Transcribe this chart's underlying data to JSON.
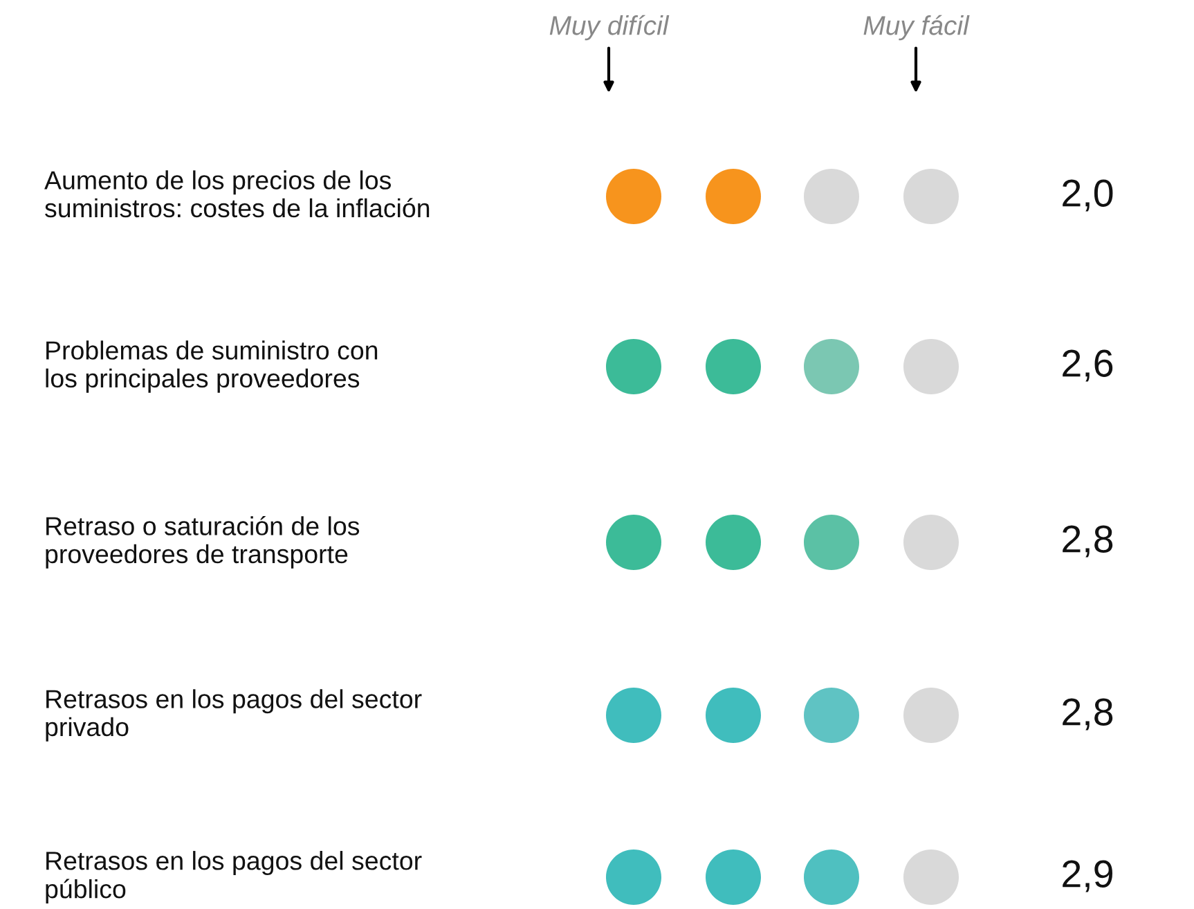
{
  "chart_data": {
    "type": "other",
    "categories": [
      "Aumento de los precios de los\nsuministros: costes de la inflación",
      "Problemas de suministro con\nlos principales proveedores",
      "Retraso o saturación de los\nproveedores de transporte",
      "Retrasos en los pagos del sector\nprivado",
      "Retrasos en los pagos del sector\npúblico"
    ],
    "values": [
      2.0,
      2.6,
      2.8,
      2.8,
      2.9
    ],
    "value_labels": [
      "2,0",
      "2,6",
      "2,8",
      "2,8",
      "2,9"
    ],
    "colors": [
      "#f7941d",
      "#3cbb98",
      "#3cbb98",
      "#40bdbd",
      "#40bdbd"
    ],
    "annotations": [
      "Muy difícil",
      "Muy fácil"
    ]
  }
}
